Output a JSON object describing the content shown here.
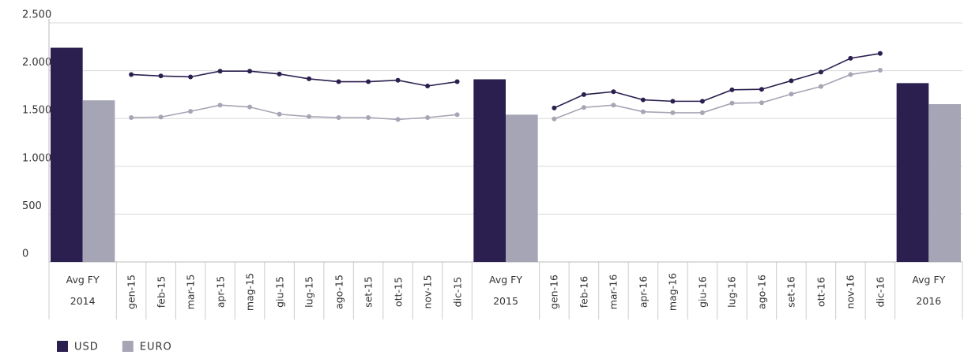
{
  "chart_data": {
    "type": "combo",
    "categories": [
      "Avg FY 2014",
      "gen-15",
      "feb-15",
      "mar-15",
      "apr-15",
      "mag-15",
      "giu-15",
      "lug-15",
      "ago-15",
      "set-15",
      "ott-15",
      "nov-15",
      "dic-15",
      "Avg FY 2015",
      "gen-16",
      "feb-16",
      "mar-16",
      "apr-16",
      "mag-16",
      "giu-16",
      "lug-16",
      "ago-16",
      "set-16",
      "ott-16",
      "nov-16",
      "dic-16",
      "Avg FY 2016"
    ],
    "series": [
      {
        "name": "USD",
        "color": "#2b1f4f",
        "bars": [
          2240,
          null,
          null,
          null,
          null,
          null,
          null,
          null,
          null,
          null,
          null,
          null,
          null,
          1910,
          null,
          null,
          null,
          null,
          null,
          null,
          null,
          null,
          null,
          null,
          null,
          null,
          1870
        ],
        "values": [
          null,
          1960,
          1945,
          1935,
          1995,
          1995,
          1965,
          1915,
          1885,
          1885,
          1900,
          1840,
          1885,
          null,
          1610,
          1750,
          1780,
          1695,
          1680,
          1680,
          1800,
          1805,
          1895,
          1985,
          2130,
          2180,
          null
        ]
      },
      {
        "name": "EURO",
        "color": "#a5a5b5",
        "bars": [
          1690,
          null,
          null,
          null,
          null,
          null,
          null,
          null,
          null,
          null,
          null,
          null,
          null,
          1540,
          null,
          null,
          null,
          null,
          null,
          null,
          null,
          null,
          null,
          null,
          null,
          null,
          1650
        ],
        "values": [
          null,
          1510,
          1515,
          1575,
          1640,
          1620,
          1545,
          1520,
          1510,
          1510,
          1490,
          1510,
          1540,
          null,
          1495,
          1615,
          1640,
          1570,
          1560,
          1560,
          1660,
          1665,
          1755,
          1835,
          1960,
          2005,
          null
        ]
      }
    ],
    "ylim": [
      0,
      2500
    ],
    "yticks": [
      0,
      500,
      {
        "value": 1000,
        "label": "1.000"
      },
      {
        "value": 1500,
        "label": "1.500"
      },
      {
        "value": 2000,
        "label": "2.000"
      },
      {
        "value": 2500,
        "label": "2.500"
      }
    ],
    "grid": true,
    "legend": "bottom-left"
  }
}
